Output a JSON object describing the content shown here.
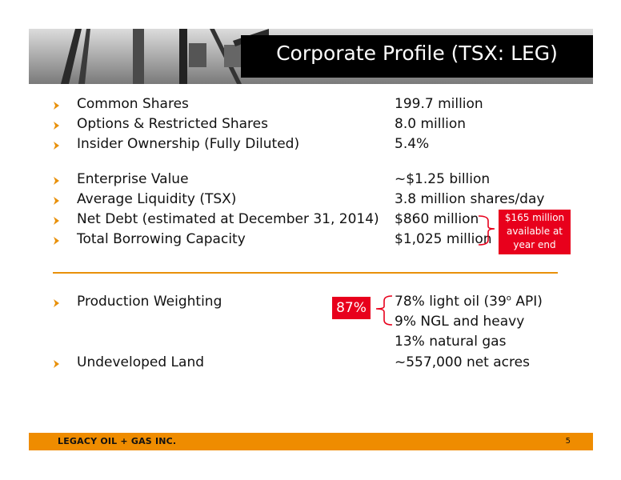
{
  "header": {
    "title": "Corporate Profile (TSX: LEG)"
  },
  "group1": [
    {
      "label": "Common Shares",
      "value": "199.7 million"
    },
    {
      "label": "Options & Restricted Shares",
      "value": "8.0 million"
    },
    {
      "label": "Insider Ownership (Fully Diluted)",
      "value": "5.4%"
    }
  ],
  "group2": [
    {
      "label": "Enterprise Value",
      "value": "~$1.25 billion"
    },
    {
      "label": "Average Liquidity (TSX)",
      "value": "3.8 million shares/day"
    },
    {
      "label": "Net Debt (estimated at December 31, 2014)",
      "value": "$860 million"
    },
    {
      "label": "Total Borrowing Capacity",
      "value": "$1,025 million"
    }
  ],
  "available_callout": {
    "line1": "$165 million",
    "line2": "available at",
    "line3": "year end"
  },
  "production": {
    "label": "Production Weighting",
    "light_oil_prefix": "78% light oil (39",
    "light_oil_sup": "o",
    "light_oil_suffix": " API)",
    "ngl": "9% NGL and heavy",
    "gas": "13% natural gas",
    "combined_badge": "87%"
  },
  "land": {
    "label": "Undeveloped Land",
    "value": "~557,000 net acres"
  },
  "footer": {
    "company": "LEGACY OIL + GAS INC.",
    "page": "5"
  },
  "colors": {
    "accent_orange": "#ef8c00",
    "callout_red": "#e8001c",
    "title_bg": "#000000"
  }
}
